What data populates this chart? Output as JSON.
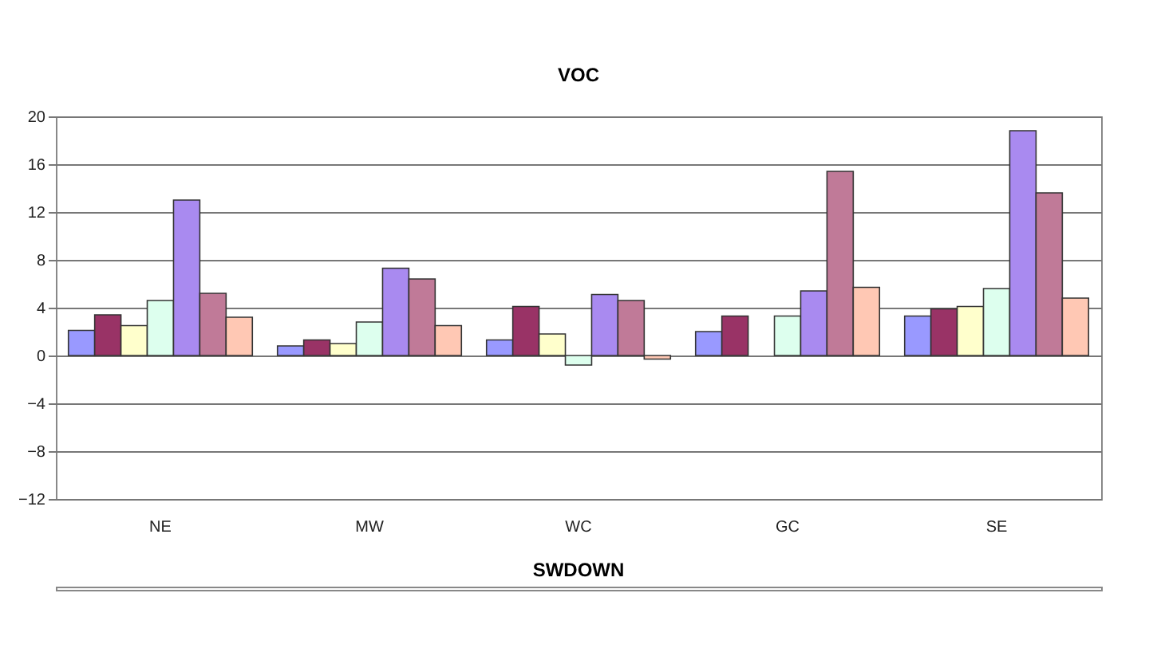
{
  "chart_data": [
    {
      "type": "bar",
      "title": "VOC",
      "categories": [
        "NE",
        "MW",
        "WC",
        "GC",
        "SE"
      ],
      "series": [
        {
          "color": "#9999ff",
          "values": [
            2.1,
            0.8,
            1.3,
            2.0,
            3.3
          ]
        },
        {
          "color": "#993366",
          "values": [
            3.4,
            1.3,
            4.1,
            3.3,
            3.9
          ]
        },
        {
          "color": "#ffffcc",
          "values": [
            2.5,
            1.0,
            1.8,
            null,
            4.1
          ]
        },
        {
          "color": "#ddffee",
          "values": [
            4.6,
            2.8,
            -0.8,
            3.3,
            5.6
          ]
        },
        {
          "color": "#a98af0",
          "values": [
            13.0,
            7.3,
            5.1,
            5.4,
            18.8
          ]
        },
        {
          "color": "#c07a98",
          "values": [
            5.2,
            6.4,
            4.6,
            15.4,
            13.6
          ]
        },
        {
          "color": "#ffc8b4",
          "values": [
            3.2,
            2.5,
            -0.3,
            5.7,
            4.8
          ]
        }
      ],
      "ylim": [
        -12,
        20
      ],
      "yticks": [
        -12,
        -8,
        -4,
        0,
        4,
        8,
        12,
        16,
        20
      ],
      "grid": "y"
    },
    {
      "type": "other",
      "title": "SWDOWN"
    }
  ]
}
